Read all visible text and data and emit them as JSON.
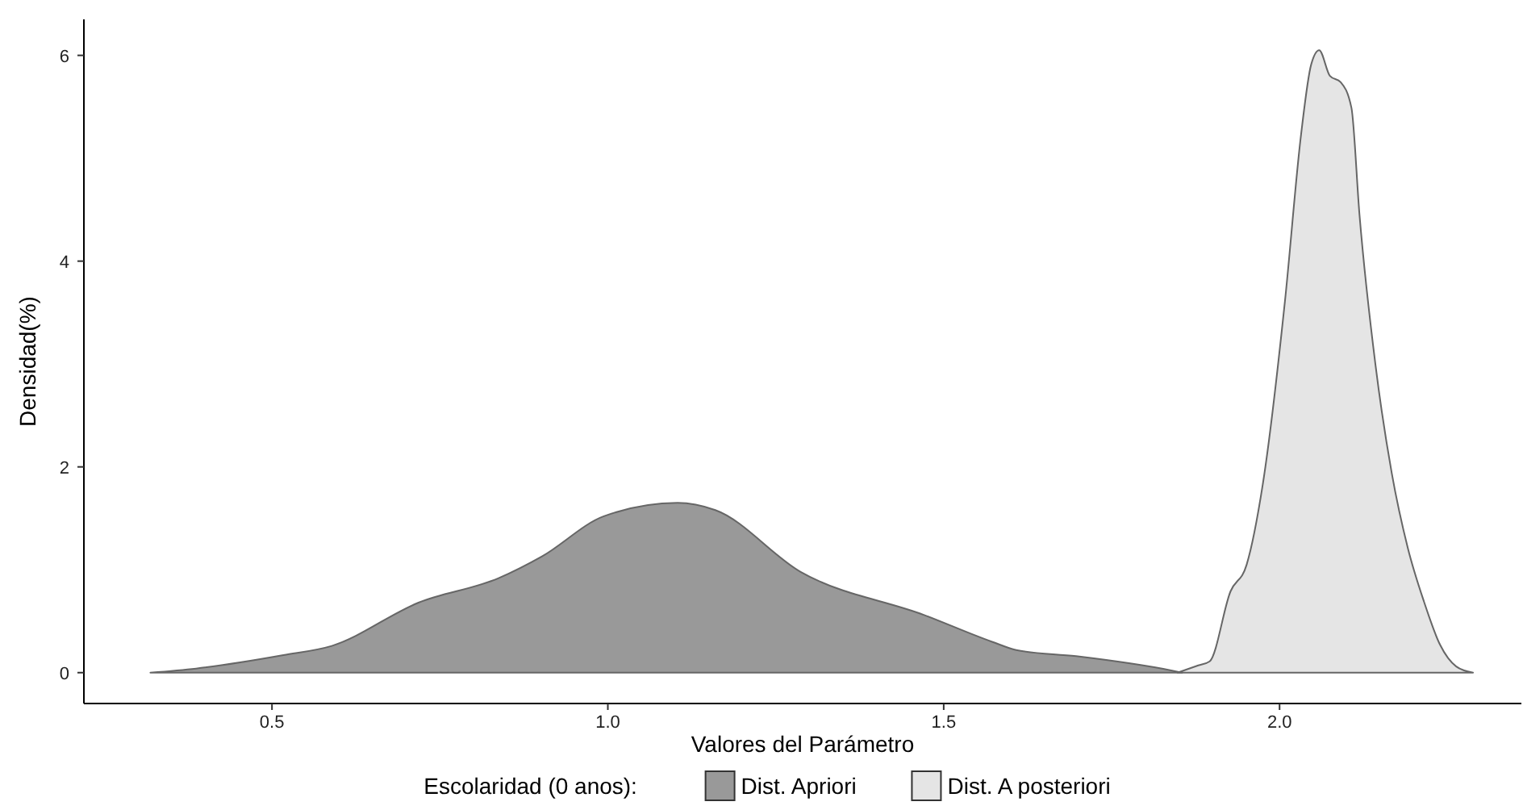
{
  "chart_data": {
    "type": "area",
    "xlabel": "Valores del Parámetro",
    "ylabel": "Densidad(%)",
    "legend_title": "Escolaridad (0 anos):",
    "legend": "bottom",
    "grid": false,
    "xlim": [
      0.22,
      2.36
    ],
    "xticks": [
      {
        "value": 0.5,
        "label": "0.5"
      },
      {
        "value": 1,
        "label": "1.0"
      },
      {
        "value": 1.5,
        "label": "1.5"
      },
      {
        "value": 2,
        "label": "2.0"
      }
    ],
    "ylim": [
      -0.3,
      6.35
    ],
    "yticks": [
      0,
      2,
      4,
      6
    ],
    "series": [
      {
        "name": "Dist. Apriori",
        "color": "#999999",
        "x": [
          0.319,
          0.387,
          0.517,
          0.589,
          0.718,
          0.838,
          0.902,
          0.994,
          1.104,
          1.16,
          1.287,
          1.471,
          1.572,
          1.608,
          1.697,
          1.84,
          1.855
        ],
        "values": [
          0,
          0.04,
          0.17,
          0.26,
          0.68,
          0.92,
          1.13,
          1.52,
          1.65,
          1.58,
          0.98,
          0.56,
          0.3,
          0.22,
          0.16,
          0.02,
          0
        ]
      },
      {
        "name": "Dist. A posteriori",
        "color": "#e5e5e5",
        "x": [
          1.848,
          1.879,
          1.896,
          1.927,
          1.951,
          1.975,
          2.008,
          2.032,
          2.047,
          2.059,
          2.075,
          2.091,
          2.107,
          2.119,
          2.143,
          2.167,
          2.191,
          2.215,
          2.239,
          2.263,
          2.288
        ],
        "values": [
          0,
          0.07,
          0.11,
          0.79,
          1.05,
          1.83,
          3.61,
          5.23,
          5.91,
          6.05,
          5.8,
          5.74,
          5.49,
          4.45,
          2.98,
          1.94,
          1.21,
          0.69,
          0.27,
          0.06,
          0
        ]
      }
    ]
  }
}
